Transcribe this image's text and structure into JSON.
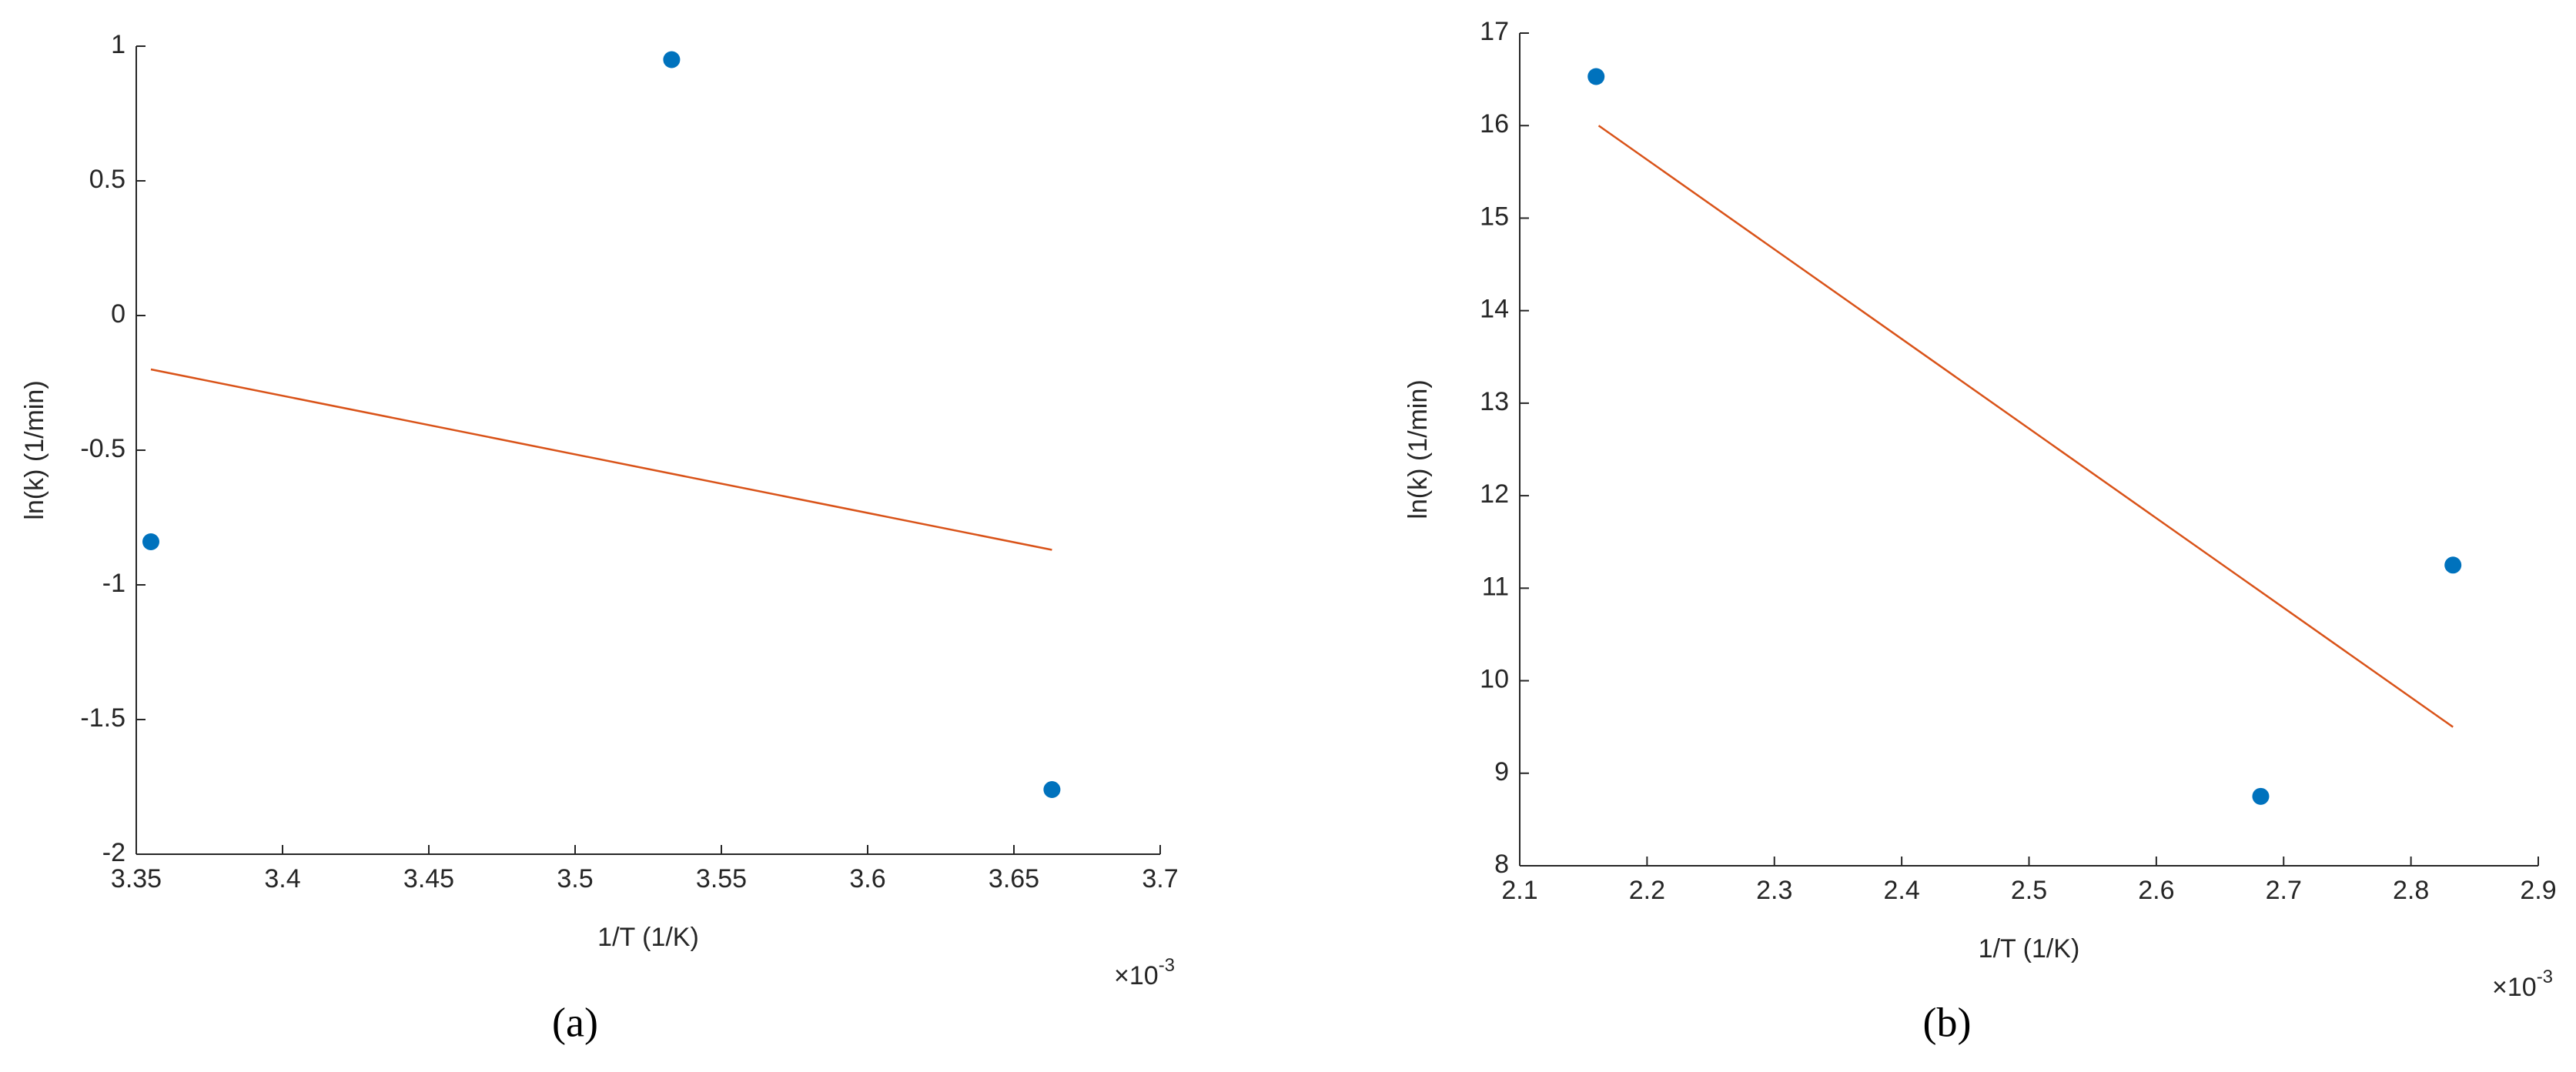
{
  "chart_data": [
    {
      "type": "scatter",
      "caption": "(a)",
      "xlabel": "1/T (1/K)",
      "ylabel": "ln(k) (1/min)",
      "x_multiplier": "×10",
      "x_multiplier_exp": "-3",
      "xlim": [
        3.35,
        3.7
      ],
      "xticks": [
        3.35,
        3.4,
        3.45,
        3.5,
        3.55,
        3.6,
        3.65,
        3.7
      ],
      "ylim": [
        -2,
        1
      ],
      "yticks": [
        -2,
        -1.5,
        -1,
        -0.5,
        0,
        0.5,
        1
      ],
      "points": {
        "color": "#0072bd",
        "x": [
          3.355,
          3.533,
          3.663
        ],
        "values": [
          -0.84,
          0.95,
          -1.76
        ]
      },
      "fit": {
        "color": "#d95319",
        "x": [
          3.355,
          3.663
        ],
        "values": [
          -0.2,
          -0.87
        ]
      }
    },
    {
      "type": "scatter",
      "caption": "(b)",
      "xlabel": "1/T (1/K)",
      "ylabel": "ln(k) (1/min)",
      "x_multiplier": "×10",
      "x_multiplier_exp": "-3",
      "xlim": [
        2.1,
        2.9
      ],
      "xticks": [
        2.1,
        2.2,
        2.3,
        2.4,
        2.5,
        2.6,
        2.7,
        2.8,
        2.9
      ],
      "ylim": [
        8,
        17
      ],
      "yticks": [
        8,
        9,
        10,
        11,
        12,
        13,
        14,
        15,
        16,
        17
      ],
      "points": {
        "color": "#0072bd",
        "x": [
          2.16,
          2.682,
          2.833
        ],
        "values": [
          16.53,
          8.75,
          11.25
        ]
      },
      "fit": {
        "color": "#d95319",
        "x": [
          2.162,
          2.833
        ],
        "values": [
          16.0,
          9.5
        ]
      }
    }
  ]
}
